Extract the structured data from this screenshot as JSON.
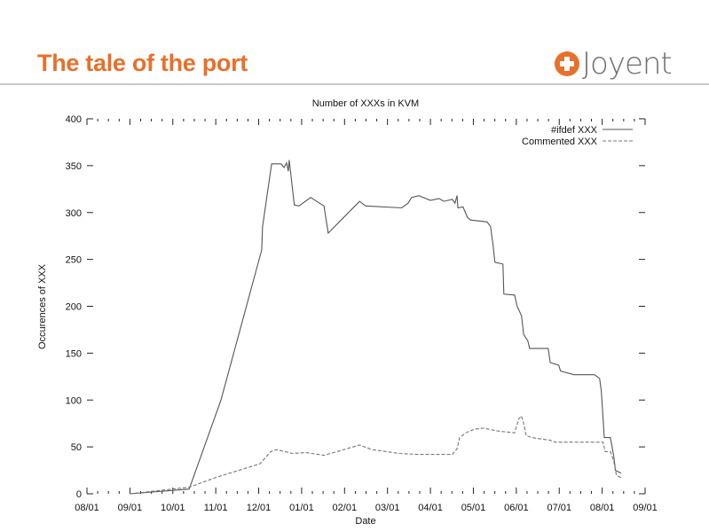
{
  "slide": {
    "title": "The tale of the port",
    "logo_text": "Joyent",
    "accent_color": "#E8702A"
  },
  "chart_data": {
    "type": "line",
    "title": "Number of XXXs in KVM",
    "xlabel": "Date",
    "ylabel": "Occurences of XXX",
    "x_unit": "months since first 08/01 tick",
    "xlim": [
      0,
      13
    ],
    "ylim": [
      0,
      400
    ],
    "x_ticks": [
      "08/01",
      "09/01",
      "10/01",
      "11/01",
      "12/01",
      "01/01",
      "02/01",
      "03/01",
      "04/01",
      "05/01",
      "06/01",
      "07/01",
      "08/01",
      "09/01"
    ],
    "y_ticks": [
      0,
      50,
      100,
      150,
      200,
      250,
      300,
      350,
      400
    ],
    "legend_position": "top-right",
    "grid": false,
    "series": [
      {
        "name": "#ifdef XXX",
        "style": "solid",
        "color": "#555555",
        "x": [
          1.0,
          2.38,
          3.12,
          4.07,
          4.09,
          4.3,
          4.52,
          4.59,
          4.65,
          4.69,
          4.71,
          4.83,
          4.94,
          5.21,
          5.52,
          5.62,
          6.35,
          6.49,
          7.33,
          7.48,
          7.56,
          7.73,
          8.0,
          8.2,
          8.31,
          8.51,
          8.57,
          8.62,
          8.64,
          8.76,
          8.86,
          8.93,
          9.32,
          9.4,
          9.46,
          9.5,
          9.69,
          9.71,
          9.96,
          10.02,
          10.12,
          10.17,
          10.27,
          10.31,
          10.74,
          10.79,
          10.99,
          11.03,
          11.34,
          11.82,
          11.94,
          11.98,
          12.05,
          12.19,
          12.27,
          12.31,
          12.44
        ],
        "y": [
          0,
          5,
          100,
          260,
          285,
          352,
          352,
          348,
          353,
          344,
          356,
          308,
          307,
          316,
          307,
          278,
          312,
          307,
          305,
          310,
          316,
          318,
          313,
          315,
          312,
          314,
          310,
          318,
          305,
          306,
          295,
          292,
          290,
          285,
          265,
          247,
          245,
          213,
          212,
          200,
          190,
          170,
          163,
          155,
          155,
          140,
          137,
          131,
          127,
          127,
          123,
          110,
          60,
          60,
          40,
          25,
          22
        ]
      },
      {
        "name": "Commented XXX",
        "style": "dashed",
        "color": "#777777",
        "x": [
          1.0,
          2.38,
          3.04,
          4.03,
          4.28,
          4.42,
          4.79,
          5.1,
          5.52,
          5.83,
          6.34,
          6.65,
          7.27,
          7.69,
          8.51,
          8.62,
          8.68,
          8.82,
          9.03,
          9.24,
          9.55,
          9.96,
          10.06,
          10.12,
          10.17,
          10.23,
          10.37,
          10.79,
          10.91,
          12.02,
          12.07,
          12.19,
          12.27,
          12.33,
          12.44
        ],
        "y": [
          0,
          7,
          18,
          32,
          45,
          47,
          43,
          44,
          41,
          45,
          52,
          47,
          43,
          42,
          42,
          48,
          60,
          65,
          69,
          70,
          67,
          65,
          80,
          83,
          75,
          62,
          60,
          57,
          55,
          55,
          45,
          45,
          35,
          20,
          17
        ]
      }
    ]
  }
}
